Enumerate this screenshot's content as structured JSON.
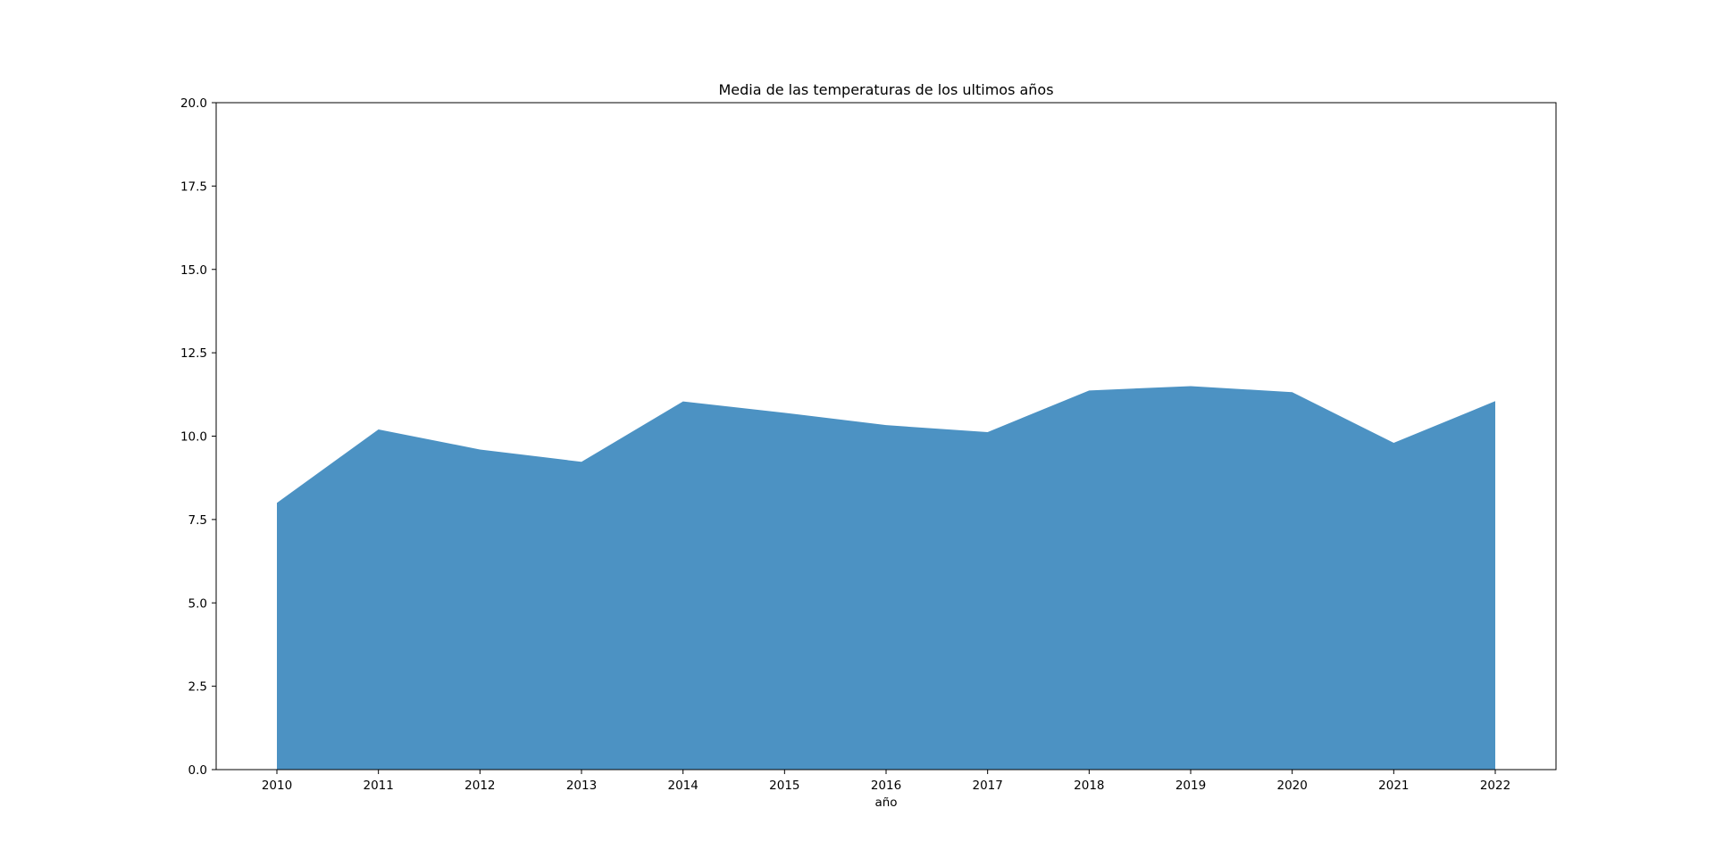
{
  "chart_data": {
    "type": "area",
    "title": "Media de las temperaturas de los ultimos años",
    "xlabel": "año",
    "ylabel": "",
    "x": [
      "2010",
      "2011",
      "2012",
      "2013",
      "2014",
      "2015",
      "2016",
      "2017",
      "2018",
      "2019",
      "2020",
      "2021",
      "2022"
    ],
    "values": [
      8.0,
      10.2,
      9.6,
      9.23,
      11.04,
      10.7,
      10.33,
      10.12,
      11.37,
      11.5,
      11.32,
      9.8,
      11.05
    ],
    "ylim": [
      0,
      20
    ],
    "yticks": [
      "0.0",
      "2.5",
      "5.0",
      "7.5",
      "10.0",
      "12.5",
      "15.0",
      "17.5",
      "20.0"
    ],
    "grid": false,
    "legend": "none",
    "fill_color": "#4c92c3"
  }
}
